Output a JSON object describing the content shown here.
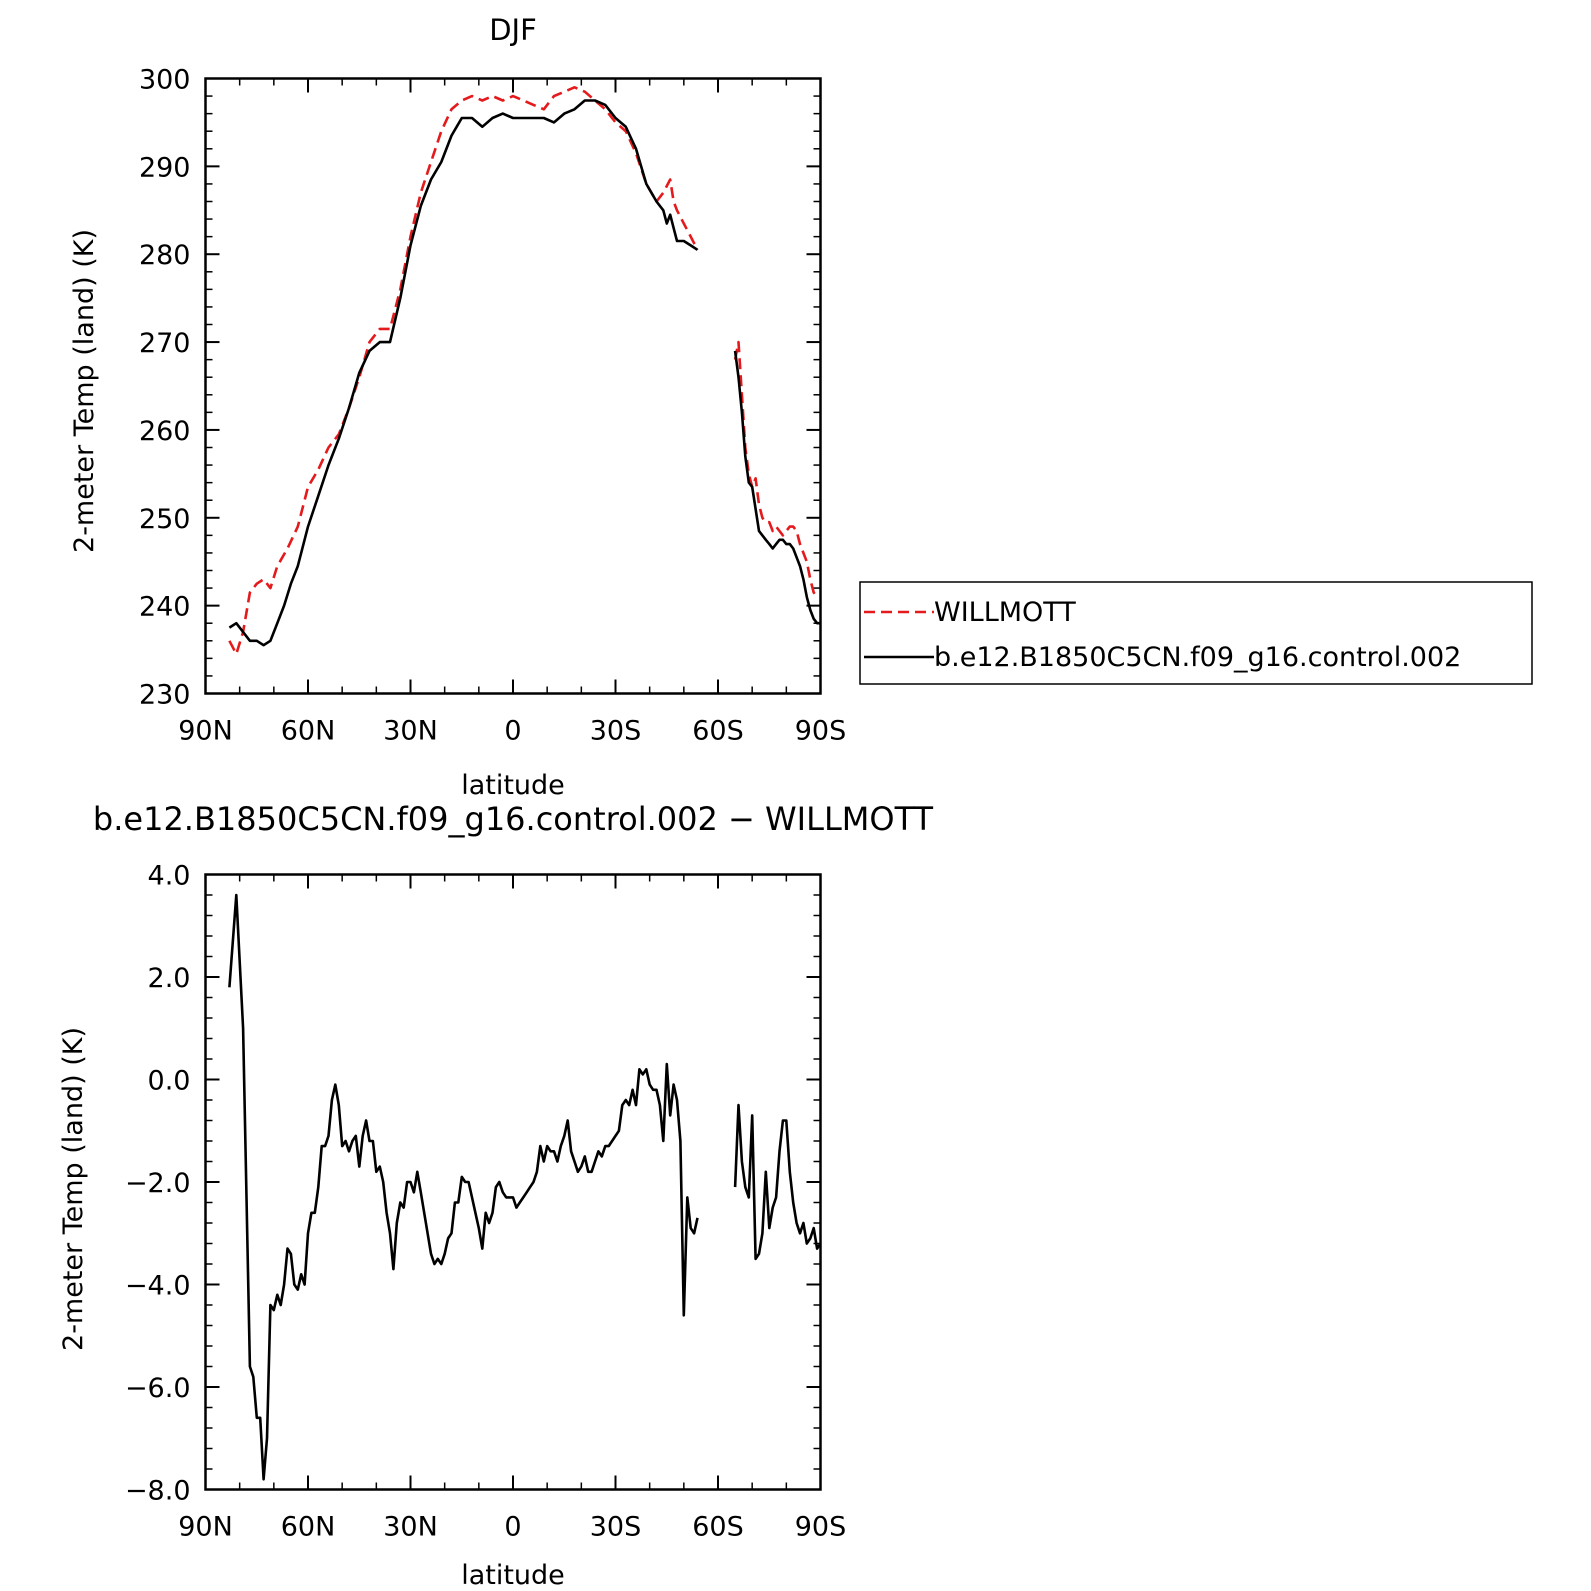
{
  "chart_data": [
    {
      "type": "line",
      "title": "DJF",
      "xlabel": "latitude",
      "ylabel": "2-meter Temp (land) (K)",
      "xlim": [
        90,
        -90
      ],
      "ylim": [
        230,
        300
      ],
      "x_tick_values": [
        90,
        60,
        30,
        0,
        -30,
        -60,
        -90
      ],
      "x_tick_labels": [
        "90N",
        "60N",
        "30N",
        "0",
        "30S",
        "60S",
        "90S"
      ],
      "y_tick_values": [
        230,
        240,
        250,
        260,
        270,
        280,
        290,
        300
      ],
      "y_tick_labels": [
        "230",
        "240",
        "250",
        "260",
        "270",
        "280",
        "290",
        "300"
      ],
      "legend": "outside-right",
      "grid": false,
      "series": [
        {
          "name": "WILLMOTT",
          "color": "#e41a1c",
          "dash": "dashed",
          "segments": [
            {
              "x": [
                83,
                81,
                79,
                77,
                75,
                73,
                71,
                69,
                66,
                63,
                60,
                57,
                54,
                51,
                48,
                45,
                42,
                39,
                36,
                33,
                30,
                27,
                24,
                21,
                18,
                15,
                12,
                9,
                6,
                3,
                0,
                -3,
                -6,
                -9,
                -12,
                -15,
                -18,
                -21,
                -24,
                -27,
                -30,
                -33,
                -36,
                -39,
                -42,
                -44,
                -46,
                -47,
                -48,
                -50,
                -52,
                -54
              ],
              "y": [
                236,
                234.5,
                237,
                241.5,
                242.5,
                243,
                242,
                244.5,
                246.5,
                249,
                253.5,
                255.5,
                258,
                259.5,
                262.5,
                266,
                270,
                271.5,
                271.5,
                276,
                282,
                287,
                290.5,
                294,
                296.5,
                297.5,
                298,
                297.5,
                298,
                297.5,
                298,
                297.5,
                297,
                296.5,
                298,
                298.5,
                299,
                298.5,
                297.5,
                296.5,
                295,
                294,
                291.5,
                288,
                286,
                287,
                288.5,
                286,
                285,
                283.5,
                282,
                280.5
              ]
            },
            {
              "x": [
                -65,
                -66,
                -67,
                -68,
                -69,
                -70,
                -71,
                -72,
                -73,
                -74,
                -75,
                -76,
                -77,
                -78,
                -79,
                -80,
                -81,
                -82,
                -83,
                -84,
                -85,
                -86,
                -87,
                -88,
                -89
              ],
              "y": [
                268,
                270,
                264,
                258,
                255,
                253.5,
                254.5,
                251.5,
                250,
                249.5,
                249.5,
                248.5,
                249,
                248.5,
                248,
                248.5,
                249,
                249,
                248.5,
                247,
                246,
                245,
                243,
                241.5,
                241
              ]
            }
          ]
        },
        {
          "name": "b.e12.B1850C5CN.f09_g16.control.002",
          "color": "#000000",
          "dash": "solid",
          "segments": [
            {
              "x": [
                83,
                81,
                79,
                77,
                75,
                73,
                71,
                69,
                67,
                65,
                63,
                60,
                57,
                54,
                51,
                48,
                45,
                42,
                39,
                36,
                33,
                30,
                27,
                24,
                21,
                18,
                15,
                12,
                9,
                6,
                3,
                0,
                -3,
                -6,
                -9,
                -12,
                -15,
                -18,
                -21,
                -24,
                -27,
                -30,
                -33,
                -36,
                -39,
                -42,
                -44,
                -45,
                -46,
                -47,
                -48,
                -50,
                -52,
                -54
              ],
              "y": [
                237.5,
                238,
                237,
                236,
                236,
                235.5,
                236,
                238,
                240,
                242.5,
                244.5,
                249,
                252.5,
                256,
                259,
                262.5,
                266.5,
                269,
                270,
                270,
                275,
                281,
                285.5,
                288.5,
                290.5,
                293.5,
                295.5,
                295.5,
                294.5,
                295.5,
                296,
                295.5,
                295.5,
                295.5,
                295.5,
                295,
                296,
                296.5,
                297.5,
                297.5,
                297,
                295.5,
                294.5,
                292,
                288,
                286,
                285,
                283.5,
                284.5,
                283,
                281.5,
                281.5,
                281,
                280.5
              ]
            },
            {
              "x": [
                -65,
                -66,
                -67,
                -68,
                -69,
                -70,
                -71,
                -72,
                -73,
                -74,
                -75,
                -76,
                -77,
                -78,
                -79,
                -80,
                -81,
                -82,
                -83,
                -84,
                -85,
                -86,
                -87,
                -88,
                -89,
                -90
              ],
              "y": [
                269,
                266,
                262,
                257,
                254,
                253.5,
                251,
                248.5,
                248,
                247.5,
                247,
                246.5,
                247,
                247.5,
                247.5,
                247,
                247,
                246.5,
                245.5,
                244.5,
                243,
                241,
                239.5,
                238.5,
                238,
                238
              ]
            }
          ]
        }
      ]
    },
    {
      "type": "line",
      "title": "b.e12.B1850C5CN.f09_g16.control.002 − WILLMOTT",
      "xlabel": "latitude",
      "ylabel": "2-meter Temp (land) (K)",
      "xlim": [
        90,
        -90
      ],
      "ylim": [
        -8,
        4
      ],
      "x_tick_values": [
        90,
        60,
        30,
        0,
        -30,
        -60,
        -90
      ],
      "x_tick_labels": [
        "90N",
        "60N",
        "30N",
        "0",
        "30S",
        "60S",
        "90S"
      ],
      "y_tick_values": [
        -8,
        -6,
        -4,
        -2,
        0,
        2,
        4
      ],
      "y_tick_labels": [
        "−8.0",
        "−6.0",
        "−4.0",
        "−2.0",
        "0.0",
        "2.0",
        "4.0"
      ],
      "grid": false,
      "series": [
        {
          "name": "b.e12.B1850C5CN.f09_g16.control.002 − WILLMOTT",
          "color": "#000000",
          "dash": "solid",
          "segments": [
            {
              "x": [
                83,
                81,
                79,
                77,
                76,
                75,
                74,
                73,
                72,
                71,
                70,
                69,
                68,
                67,
                66,
                65,
                64,
                63,
                62,
                61,
                60,
                59,
                58,
                57,
                56,
                55,
                54,
                53,
                52,
                51,
                50,
                49,
                48,
                47,
                46,
                45,
                44,
                43,
                42,
                41,
                40,
                39,
                38,
                37,
                36,
                35,
                34,
                33,
                32,
                31,
                30,
                29,
                28,
                27,
                26,
                25,
                24,
                23,
                22,
                21,
                20,
                19,
                18,
                17,
                16,
                15,
                14,
                13,
                12,
                11,
                10,
                9,
                8,
                7,
                6,
                5,
                4,
                3,
                2,
                1,
                0,
                -1,
                -2,
                -3,
                -4,
                -5,
                -6,
                -7,
                -8,
                -9,
                -10,
                -11,
                -12,
                -13,
                -14,
                -15,
                -16,
                -17,
                -18,
                -19,
                -20,
                -21,
                -22,
                -23,
                -24,
                -25,
                -26,
                -27,
                -28,
                -29,
                -30,
                -31,
                -32,
                -33,
                -34,
                -35,
                -36,
                -37,
                -38,
                -39,
                -40,
                -41,
                -42,
                -43,
                -44,
                -45,
                -46,
                -47,
                -48,
                -49,
                -50,
                -51,
                -52,
                -53,
                -54
              ],
              "y": [
                1.8,
                3.6,
                1.0,
                -5.6,
                -5.8,
                -6.6,
                -6.6,
                -7.8,
                -7.0,
                -4.4,
                -4.5,
                -4.2,
                -4.4,
                -4.0,
                -3.3,
                -3.4,
                -4.0,
                -4.1,
                -3.8,
                -4.0,
                -3.0,
                -2.6,
                -2.6,
                -2.1,
                -1.3,
                -1.3,
                -1.1,
                -0.4,
                -0.1,
                -0.5,
                -1.3,
                -1.2,
                -1.4,
                -1.2,
                -1.1,
                -1.7,
                -1.1,
                -0.8,
                -1.2,
                -1.2,
                -1.8,
                -1.7,
                -2.0,
                -2.6,
                -3.0,
                -3.7,
                -2.8,
                -2.4,
                -2.5,
                -2.0,
                -2.0,
                -2.2,
                -1.8,
                -2.2,
                -2.6,
                -3.0,
                -3.4,
                -3.6,
                -3.5,
                -3.6,
                -3.4,
                -3.1,
                -3.0,
                -2.4,
                -2.4,
                -1.9,
                -2.0,
                -2.0,
                -2.3,
                -2.6,
                -2.9,
                -3.3,
                -2.6,
                -2.8,
                -2.6,
                -2.1,
                -2.0,
                -2.2,
                -2.3,
                -2.3,
                -2.3,
                -2.5,
                -2.4,
                -2.3,
                -2.2,
                -2.1,
                -2.0,
                -1.8,
                -1.3,
                -1.6,
                -1.3,
                -1.4,
                -1.4,
                -1.6,
                -1.3,
                -1.1,
                -0.8,
                -1.4,
                -1.6,
                -1.8,
                -1.7,
                -1.5,
                -1.8,
                -1.8,
                -1.6,
                -1.4,
                -1.5,
                -1.3,
                -1.3,
                -1.2,
                -1.1,
                -1.0,
                -0.5,
                -0.4,
                -0.5,
                -0.2,
                -0.5,
                0.2,
                0.1,
                0.2,
                -0.1,
                -0.2,
                -0.2,
                -0.5,
                -1.2,
                0.3,
                -0.7,
                -0.1,
                -0.4,
                -1.2,
                -4.6,
                -2.3,
                -2.9,
                -3.0,
                -2.7
              ]
            },
            {
              "x": [
                -65,
                -66,
                -67,
                -68,
                -69,
                -70,
                -71,
                -72,
                -73,
                -74,
                -75,
                -76,
                -77,
                -78,
                -79,
                -80,
                -81,
                -82,
                -83,
                -84,
                -85,
                -86,
                -87,
                -88,
                -89,
                -90
              ],
              "y": [
                -2.1,
                -0.5,
                -1.6,
                -2.1,
                -2.3,
                -0.7,
                -3.5,
                -3.4,
                -3.0,
                -1.8,
                -2.9,
                -2.5,
                -2.3,
                -1.4,
                -0.8,
                -0.8,
                -1.8,
                -2.4,
                -2.8,
                -3.0,
                -2.8,
                -3.2,
                -3.1,
                -2.9,
                -3.3,
                -3.2
              ]
            }
          ]
        }
      ]
    }
  ]
}
